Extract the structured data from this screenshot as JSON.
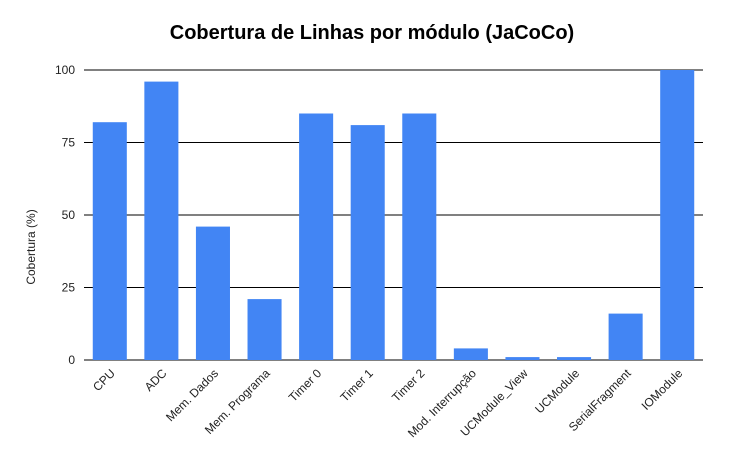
{
  "chart_data": {
    "type": "bar",
    "title": "Cobertura de Linhas por módulo (JaCoCo)",
    "xlabel": "",
    "ylabel": "Cobertura (%)",
    "ylim": [
      0,
      100
    ],
    "yticks": [
      "0",
      "25",
      "50",
      "75",
      "100"
    ],
    "grid": true,
    "legend": "none",
    "categories": [
      "CPU",
      "ADC",
      "Mem. Dados",
      "Mem. Programa",
      "Timer 0",
      "Timer 1",
      "Timer 2",
      "Mod. Interrupção",
      "UCModule_View",
      "UCModule",
      "SerialFragment",
      "IOModule"
    ],
    "values": [
      82,
      96,
      46,
      21,
      85,
      81,
      85,
      4,
      1,
      1,
      16,
      100
    ],
    "colors": {
      "bar": "#4285f4",
      "grid": "#000000",
      "text": "#222222"
    }
  }
}
